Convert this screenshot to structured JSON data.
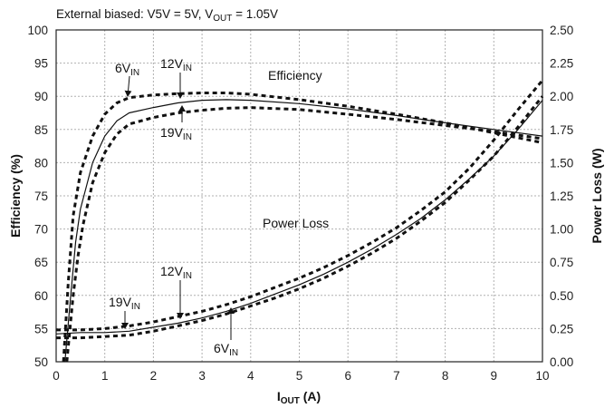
{
  "chart_data": {
    "type": "line",
    "conditions": {
      "prefix": "External biased: V5V = 5V, V",
      "sub": "OUT",
      "suffix": " = 1.05V"
    },
    "xlabel": {
      "main": "I",
      "sub": "OUT",
      "rest": " (A)"
    },
    "ylabel": "Efficiency (%)",
    "y2label": "Power Loss (W)",
    "xlim": [
      0,
      10
    ],
    "ylim": [
      50,
      100
    ],
    "y2lim": [
      0,
      2.5
    ],
    "x_ticks": [
      "0",
      "1",
      "2",
      "3",
      "4",
      "5",
      "6",
      "7",
      "8",
      "9",
      "10"
    ],
    "y_ticks": [
      "50",
      "55",
      "60",
      "65",
      "70",
      "75",
      "80",
      "85",
      "90",
      "95",
      "100"
    ],
    "y2_ticks": [
      "0.00",
      "0.25",
      "0.50",
      "0.75",
      "1.00",
      "1.25",
      "1.50",
      "1.75",
      "2.00",
      "2.25",
      "2.50"
    ],
    "grid": true,
    "annotations": {
      "efficiency": "Efficiency",
      "power_loss": "Power Loss",
      "eff_6vin": {
        "main": "6V",
        "sub": "IN"
      },
      "eff_12vin": {
        "main": "12V",
        "sub": "IN"
      },
      "eff_19vin": {
        "main": "19V",
        "sub": "IN"
      },
      "loss_19vin": {
        "main": "19V",
        "sub": "IN"
      },
      "loss_12vin": {
        "main": "12V",
        "sub": "IN"
      },
      "loss_6vin": {
        "main": "6V",
        "sub": "IN"
      }
    },
    "series": [
      {
        "axis": "efficiency",
        "style": "dashed",
        "vin": "6V",
        "x": [
          0.15,
          0.25,
          0.35,
          0.5,
          0.75,
          1.0,
          1.25,
          1.5,
          2,
          2.5,
          3,
          3.5,
          4,
          5,
          6,
          7,
          8,
          9,
          10
        ],
        "y": [
          50,
          62,
          72,
          78.5,
          84,
          87.3,
          89,
          89.8,
          90.2,
          90.4,
          90.5,
          90.5,
          90.3,
          89.5,
          88.5,
          87.3,
          86,
          84.5,
          83
        ]
      },
      {
        "axis": "efficiency",
        "style": "solid",
        "vin": "12V",
        "x": [
          0.18,
          0.3,
          0.4,
          0.5,
          0.75,
          1.0,
          1.25,
          1.5,
          2,
          2.5,
          3,
          3.5,
          4,
          5,
          6,
          7,
          8,
          9,
          10
        ],
        "y": [
          50,
          60,
          68,
          73,
          80,
          84,
          86.3,
          87.5,
          88.3,
          89,
          89.4,
          89.5,
          89.4,
          88.9,
          88.1,
          87.1,
          86,
          85,
          84
        ]
      },
      {
        "axis": "efficiency",
        "style": "dashed",
        "vin": "19V",
        "x": [
          0.22,
          0.35,
          0.45,
          0.55,
          0.75,
          1.0,
          1.25,
          1.5,
          2,
          2.5,
          3,
          3.5,
          4,
          5,
          6,
          7,
          8,
          9,
          10
        ],
        "y": [
          50,
          60,
          66,
          70.5,
          77,
          81.5,
          84.3,
          85.8,
          86.8,
          87.5,
          87.9,
          88.2,
          88.3,
          88,
          87.3,
          86.5,
          85.6,
          84.7,
          83.6
        ]
      },
      {
        "axis": "power_loss",
        "style": "dashed",
        "vin": "6V",
        "x": [
          0,
          0.5,
          1,
          1.5,
          2,
          2.5,
          3,
          3.5,
          4,
          4.5,
          5,
          5.5,
          6,
          6.5,
          7,
          7.5,
          8,
          8.5,
          9,
          9.5,
          10
        ],
        "y": [
          0.18,
          0.18,
          0.19,
          0.2,
          0.23,
          0.27,
          0.31,
          0.36,
          0.42,
          0.48,
          0.55,
          0.63,
          0.72,
          0.82,
          0.93,
          1.06,
          1.2,
          1.37,
          1.55,
          1.77,
          2.0
        ]
      },
      {
        "axis": "power_loss",
        "style": "solid",
        "vin": "12V",
        "x": [
          0,
          0.5,
          1,
          1.5,
          2,
          2.5,
          3,
          3.5,
          4,
          4.5,
          5,
          5.5,
          6,
          6.5,
          7,
          7.5,
          8,
          8.5,
          9,
          9.5,
          10
        ],
        "y": [
          0.21,
          0.22,
          0.22,
          0.23,
          0.26,
          0.29,
          0.33,
          0.38,
          0.44,
          0.51,
          0.58,
          0.66,
          0.75,
          0.85,
          0.96,
          1.08,
          1.22,
          1.38,
          1.55,
          1.75,
          1.97
        ]
      },
      {
        "axis": "power_loss",
        "style": "dashed",
        "vin": "19V",
        "x": [
          0,
          0.5,
          1,
          1.5,
          2,
          2.5,
          3,
          3.5,
          4,
          4.5,
          5,
          5.5,
          6,
          6.5,
          7,
          7.5,
          8,
          8.5,
          9,
          9.5,
          10
        ],
        "y": [
          0.24,
          0.24,
          0.25,
          0.27,
          0.3,
          0.34,
          0.38,
          0.43,
          0.49,
          0.56,
          0.63,
          0.71,
          0.8,
          0.9,
          1.01,
          1.14,
          1.28,
          1.46,
          1.67,
          1.9,
          2.12
        ]
      }
    ]
  }
}
